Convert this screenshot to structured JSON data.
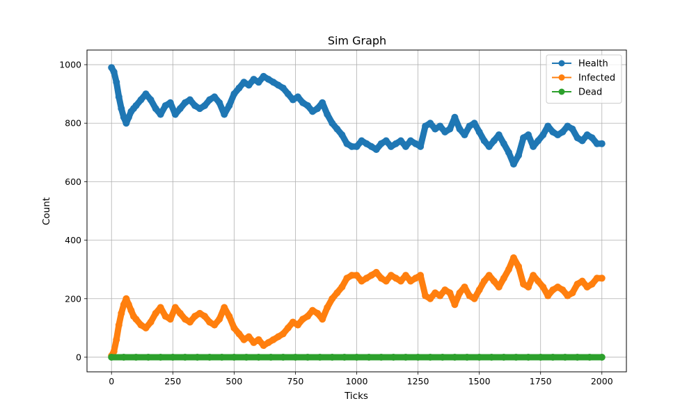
{
  "chart_data": {
    "type": "line",
    "title": "Sim Graph",
    "xlabel": "Ticks",
    "ylabel": "Count",
    "xlim": [
      -100,
      2100
    ],
    "ylim": [
      -50,
      1050
    ],
    "xticks": [
      0,
      250,
      500,
      750,
      1000,
      1250,
      1500,
      1750,
      2000
    ],
    "yticks": [
      0,
      200,
      400,
      600,
      800,
      1000
    ],
    "grid": true,
    "legend": "top-right",
    "markers": "circle",
    "series": [
      {
        "name": "Health",
        "color": "#1f77b4",
        "x": [
          0,
          10,
          20,
          30,
          40,
          50,
          60,
          70,
          80,
          90,
          100,
          120,
          140,
          160,
          180,
          200,
          220,
          240,
          260,
          280,
          300,
          320,
          340,
          360,
          380,
          400,
          420,
          440,
          460,
          480,
          500,
          520,
          540,
          560,
          580,
          600,
          620,
          640,
          660,
          680,
          700,
          720,
          740,
          760,
          780,
          800,
          820,
          840,
          860,
          880,
          900,
          920,
          940,
          960,
          980,
          1000,
          1020,
          1040,
          1060,
          1080,
          1100,
          1120,
          1140,
          1160,
          1180,
          1200,
          1220,
          1240,
          1260,
          1280,
          1300,
          1320,
          1340,
          1360,
          1380,
          1400,
          1420,
          1440,
          1460,
          1480,
          1500,
          1520,
          1540,
          1560,
          1580,
          1600,
          1620,
          1640,
          1660,
          1680,
          1700,
          1720,
          1740,
          1760,
          1780,
          1800,
          1820,
          1840,
          1860,
          1880,
          1900,
          1920,
          1940,
          1960,
          1980,
          2000
        ],
        "y": [
          990,
          975,
          940,
          890,
          850,
          820,
          800,
          820,
          840,
          850,
          860,
          880,
          900,
          880,
          850,
          830,
          860,
          870,
          830,
          850,
          870,
          880,
          860,
          850,
          860,
          880,
          890,
          870,
          830,
          860,
          900,
          920,
          940,
          930,
          950,
          940,
          960,
          950,
          940,
          930,
          920,
          900,
          880,
          890,
          870,
          860,
          840,
          850,
          870,
          830,
          800,
          780,
          760,
          730,
          720,
          720,
          740,
          730,
          720,
          710,
          730,
          740,
          720,
          730,
          740,
          720,
          740,
          730,
          720,
          790,
          800,
          780,
          790,
          770,
          780,
          820,
          780,
          760,
          790,
          800,
          770,
          740,
          720,
          740,
          760,
          730,
          700,
          660,
          690,
          750,
          760,
          720,
          740,
          760,
          790,
          770,
          760,
          770,
          790,
          780,
          750,
          740,
          760,
          750,
          730,
          730
        ]
      },
      {
        "name": "Infected",
        "color": "#ff7f0e",
        "x": [
          0,
          10,
          20,
          30,
          40,
          50,
          60,
          70,
          80,
          90,
          100,
          120,
          140,
          160,
          180,
          200,
          220,
          240,
          260,
          280,
          300,
          320,
          340,
          360,
          380,
          400,
          420,
          440,
          460,
          480,
          500,
          520,
          540,
          560,
          580,
          600,
          620,
          640,
          660,
          680,
          700,
          720,
          740,
          760,
          780,
          800,
          820,
          840,
          860,
          880,
          900,
          920,
          940,
          960,
          980,
          1000,
          1020,
          1040,
          1060,
          1080,
          1100,
          1120,
          1140,
          1160,
          1180,
          1200,
          1220,
          1240,
          1260,
          1280,
          1300,
          1320,
          1340,
          1360,
          1380,
          1400,
          1420,
          1440,
          1460,
          1480,
          1500,
          1520,
          1540,
          1560,
          1580,
          1600,
          1620,
          1640,
          1660,
          1680,
          1700,
          1720,
          1740,
          1760,
          1780,
          1800,
          1820,
          1840,
          1860,
          1880,
          1900,
          1920,
          1940,
          1960,
          1980,
          2000
        ],
        "y": [
          5,
          20,
          60,
          110,
          150,
          180,
          200,
          180,
          160,
          140,
          130,
          110,
          100,
          120,
          150,
          170,
          140,
          130,
          170,
          150,
          130,
          120,
          140,
          150,
          140,
          120,
          110,
          130,
          170,
          140,
          100,
          80,
          60,
          70,
          50,
          60,
          40,
          50,
          60,
          70,
          80,
          100,
          120,
          110,
          130,
          140,
          160,
          150,
          130,
          170,
          200,
          220,
          240,
          270,
          280,
          280,
          260,
          270,
          280,
          290,
          270,
          260,
          280,
          270,
          260,
          280,
          260,
          270,
          280,
          210,
          200,
          220,
          210,
          230,
          220,
          180,
          220,
          240,
          210,
          200,
          230,
          260,
          280,
          260,
          240,
          270,
          300,
          340,
          310,
          250,
          240,
          280,
          260,
          240,
          210,
          230,
          240,
          230,
          210,
          220,
          250,
          260,
          240,
          250,
          270,
          270
        ]
      },
      {
        "name": "Dead",
        "color": "#2ca02c",
        "x": [
          0,
          50,
          100,
          150,
          200,
          250,
          300,
          350,
          400,
          450,
          500,
          550,
          600,
          650,
          700,
          750,
          800,
          850,
          900,
          950,
          1000,
          1050,
          1100,
          1150,
          1200,
          1250,
          1300,
          1350,
          1400,
          1450,
          1500,
          1550,
          1600,
          1650,
          1700,
          1750,
          1800,
          1850,
          1900,
          1950,
          2000
        ],
        "y": [
          0,
          0,
          0,
          0,
          0,
          0,
          0,
          0,
          0,
          0,
          0,
          0,
          0,
          0,
          0,
          0,
          0,
          0,
          0,
          0,
          0,
          0,
          0,
          0,
          0,
          0,
          0,
          0,
          0,
          0,
          0,
          0,
          0,
          0,
          0,
          0,
          0,
          0,
          0,
          0,
          0
        ]
      }
    ]
  }
}
